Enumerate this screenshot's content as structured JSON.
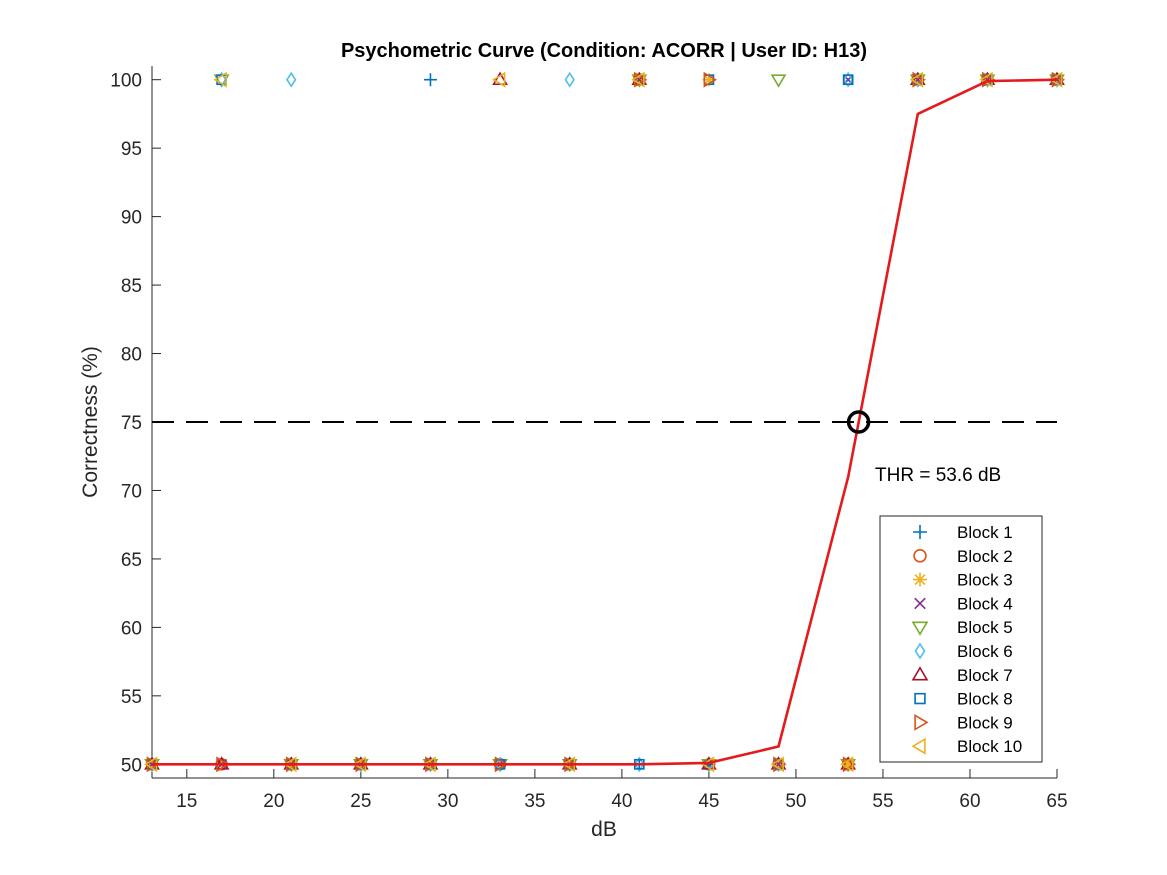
{
  "chart_data": {
    "type": "line",
    "title": "Psychometric Curve (Condition: ACORR | User ID: H13)",
    "xlabel": "dB",
    "ylabel": "Correctness (%)",
    "xlim": [
      13,
      65
    ],
    "ylim": [
      49,
      101
    ],
    "xticks": [
      15,
      20,
      25,
      30,
      35,
      40,
      45,
      50,
      55,
      60,
      65
    ],
    "yticks": [
      50,
      55,
      60,
      65,
      70,
      75,
      80,
      85,
      90,
      95,
      100
    ],
    "grid": false,
    "legend_position": "bottom-right",
    "fit_curve": {
      "color": "#e41a1c",
      "x": [
        13,
        17,
        21,
        25,
        29,
        33,
        37,
        41,
        45,
        49,
        53,
        57,
        61,
        65
      ],
      "y": [
        50,
        50,
        50,
        50,
        50,
        50,
        50,
        50,
        50.1,
        51.3,
        71,
        97.5,
        99.9,
        100
      ]
    },
    "threshold": {
      "y": 75,
      "x": 53.6,
      "label": "THR = 53.6 dB"
    },
    "series": [
      {
        "name": "Block 1",
        "marker": "plus",
        "color": "#0072BD",
        "points": [
          [
            13,
            50
          ],
          [
            17,
            50
          ],
          [
            21,
            50
          ],
          [
            25,
            50
          ],
          [
            29,
            100
          ],
          [
            33,
            50
          ],
          [
            37,
            50
          ],
          [
            41,
            50
          ],
          [
            45,
            50
          ],
          [
            49,
            50
          ],
          [
            53,
            50
          ],
          [
            57,
            100
          ],
          [
            61,
            100
          ],
          [
            65,
            100
          ]
        ]
      },
      {
        "name": "Block 2",
        "marker": "circle",
        "color": "#D95319",
        "points": [
          [
            13,
            50
          ],
          [
            17,
            50
          ],
          [
            21,
            50
          ],
          [
            25,
            50
          ],
          [
            29,
            50
          ],
          [
            33,
            50
          ],
          [
            37,
            50
          ],
          [
            41,
            100
          ],
          [
            45,
            50
          ],
          [
            49,
            50
          ],
          [
            53,
            50
          ],
          [
            57,
            100
          ],
          [
            61,
            100
          ],
          [
            65,
            100
          ]
        ]
      },
      {
        "name": "Block 3",
        "marker": "asterisk",
        "color": "#EDB120",
        "points": [
          [
            13,
            50
          ],
          [
            17,
            50
          ],
          [
            21,
            50
          ],
          [
            25,
            50
          ],
          [
            29,
            50
          ],
          [
            33,
            50
          ],
          [
            37,
            50
          ],
          [
            41,
            100
          ],
          [
            45,
            100
          ],
          [
            49,
            50
          ],
          [
            53,
            50
          ],
          [
            57,
            100
          ],
          [
            61,
            100
          ],
          [
            65,
            100
          ]
        ]
      },
      {
        "name": "Block 4",
        "marker": "cross",
        "color": "#7E2F8E",
        "points": [
          [
            13,
            50
          ],
          [
            17,
            50
          ],
          [
            21,
            50
          ],
          [
            25,
            50
          ],
          [
            29,
            50
          ],
          [
            33,
            50
          ],
          [
            37,
            50
          ],
          [
            41,
            100
          ],
          [
            45,
            50
          ],
          [
            49,
            50
          ],
          [
            53,
            100
          ],
          [
            57,
            100
          ],
          [
            61,
            100
          ],
          [
            65,
            100
          ]
        ]
      },
      {
        "name": "Block 5",
        "marker": "triangle-down",
        "color": "#77AC30",
        "points": [
          [
            13,
            50
          ],
          [
            17,
            100
          ],
          [
            21,
            50
          ],
          [
            25,
            50
          ],
          [
            29,
            50
          ],
          [
            33,
            50
          ],
          [
            37,
            50
          ],
          [
            41,
            100
          ],
          [
            45,
            50
          ],
          [
            49,
            100
          ],
          [
            53,
            50
          ],
          [
            57,
            100
          ],
          [
            61,
            100
          ],
          [
            65,
            100
          ]
        ]
      },
      {
        "name": "Block 6",
        "marker": "diamond",
        "color": "#4DBEEE",
        "points": [
          [
            13,
            50
          ],
          [
            17,
            100
          ],
          [
            21,
            100
          ],
          [
            25,
            50
          ],
          [
            29,
            50
          ],
          [
            33,
            50
          ],
          [
            37,
            100
          ],
          [
            41,
            50
          ],
          [
            45,
            50
          ],
          [
            49,
            50
          ],
          [
            53,
            100
          ],
          [
            57,
            100
          ],
          [
            61,
            100
          ],
          [
            65,
            100
          ]
        ]
      },
      {
        "name": "Block 7",
        "marker": "triangle-up",
        "color": "#A2142F",
        "points": [
          [
            13,
            50
          ],
          [
            17,
            50
          ],
          [
            21,
            50
          ],
          [
            25,
            50
          ],
          [
            29,
            50
          ],
          [
            33,
            100
          ],
          [
            37,
            50
          ],
          [
            41,
            100
          ],
          [
            45,
            50
          ],
          [
            49,
            50
          ],
          [
            53,
            50
          ],
          [
            57,
            100
          ],
          [
            61,
            100
          ],
          [
            65,
            100
          ]
        ]
      },
      {
        "name": "Block 8",
        "marker": "square",
        "color": "#0072BD",
        "points": [
          [
            13,
            50
          ],
          [
            17,
            100
          ],
          [
            21,
            50
          ],
          [
            25,
            50
          ],
          [
            29,
            50
          ],
          [
            33,
            50
          ],
          [
            37,
            50
          ],
          [
            41,
            50
          ],
          [
            45,
            100
          ],
          [
            49,
            50
          ],
          [
            53,
            100
          ],
          [
            57,
            100
          ],
          [
            61,
            100
          ],
          [
            65,
            100
          ]
        ]
      },
      {
        "name": "Block 9",
        "marker": "triangle-right",
        "color": "#D95319",
        "points": [
          [
            13,
            50
          ],
          [
            17,
            50
          ],
          [
            21,
            50
          ],
          [
            25,
            50
          ],
          [
            29,
            50
          ],
          [
            33,
            50
          ],
          [
            37,
            50
          ],
          [
            41,
            100
          ],
          [
            45,
            100
          ],
          [
            49,
            50
          ],
          [
            53,
            50
          ],
          [
            57,
            100
          ],
          [
            61,
            100
          ],
          [
            65,
            100
          ]
        ]
      },
      {
        "name": "Block 10",
        "marker": "triangle-left",
        "color": "#EDB120",
        "points": [
          [
            13,
            50
          ],
          [
            17,
            100
          ],
          [
            21,
            50
          ],
          [
            25,
            50
          ],
          [
            29,
            50
          ],
          [
            33,
            100
          ],
          [
            37,
            50
          ],
          [
            41,
            100
          ],
          [
            45,
            50
          ],
          [
            49,
            50
          ],
          [
            53,
            50
          ],
          [
            57,
            100
          ],
          [
            61,
            100
          ],
          [
            65,
            100
          ]
        ]
      }
    ]
  }
}
